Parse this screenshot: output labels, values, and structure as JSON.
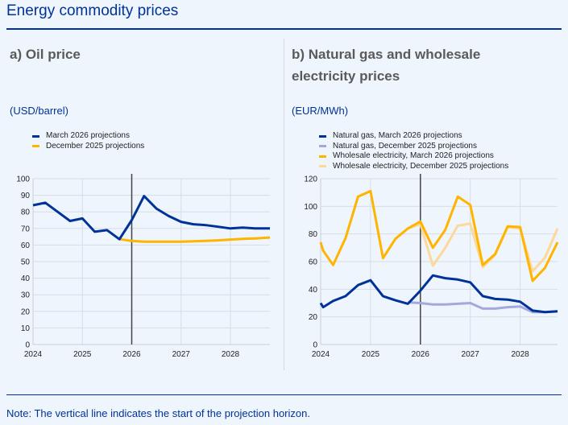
{
  "title": "Energy commodity prices",
  "note": "Note: The vertical line indicates the start of the projection horizon.",
  "colors": {
    "navy": "#003299",
    "yellow": "#ffb400",
    "light_blue": "#a4a9dc",
    "light_yellow": "#fdd89b",
    "grid": "#d6dde6",
    "axis_bg": "#eef5fc"
  },
  "chart_data": [
    {
      "type": "line",
      "title": "a) Oil price",
      "ylabel": "(USD/barrel)",
      "xlim": [
        2024,
        2028.8
      ],
      "ylim": [
        0,
        100
      ],
      "yticks": [
        0,
        10,
        20,
        30,
        40,
        50,
        60,
        70,
        80,
        90,
        100
      ],
      "xticks": [
        2024,
        2025,
        2026,
        2027,
        2028
      ],
      "grid": true,
      "legend": "top-left",
      "vline": 2026,
      "series": [
        {
          "name": "March 2026 projections",
          "color": "#003299",
          "x": [
            2024,
            2024.25,
            2024.5,
            2024.75,
            2025,
            2025.25,
            2025.5,
            2025.75,
            2026,
            2026.25,
            2026.5,
            2026.75,
            2027,
            2027.25,
            2027.5,
            2027.75,
            2028,
            2028.25,
            2028.5,
            2028.75,
            2028.8
          ],
          "y": [
            84,
            85.5,
            80,
            74.5,
            76,
            68,
            69,
            63.5,
            75,
            89.5,
            82,
            77.5,
            74,
            72.5,
            72,
            71,
            70,
            70.5,
            70,
            70,
            70
          ]
        },
        {
          "name": "December 2025 projections",
          "color": "#ffb400",
          "x": [
            2025.75,
            2026,
            2026.25,
            2026.5,
            2026.75,
            2027,
            2027.25,
            2027.5,
            2027.75,
            2028,
            2028.25,
            2028.5,
            2028.75,
            2028.8
          ],
          "y": [
            63.5,
            62.5,
            62,
            62,
            62,
            62,
            62.3,
            62.5,
            62.8,
            63.3,
            63.7,
            64,
            64.4,
            64.5
          ]
        }
      ]
    },
    {
      "type": "line",
      "title": "b) Natural gas and wholesale electricity prices",
      "ylabel": "(EUR/MWh)",
      "xlim": [
        2024,
        2028.75
      ],
      "ylim": [
        0,
        120
      ],
      "yticks": [
        0,
        20,
        40,
        60,
        80,
        100,
        120
      ],
      "xticks": [
        2024,
        2025,
        2026,
        2027,
        2028
      ],
      "grid": true,
      "legend": "top-left",
      "vline": 2026,
      "series": [
        {
          "name": "Natural gas, March 2026 projections",
          "color": "#003299",
          "x": [
            2024,
            2024.05,
            2024.25,
            2024.5,
            2024.75,
            2025,
            2025.25,
            2025.5,
            2025.75,
            2026,
            2026.25,
            2026.5,
            2026.75,
            2027,
            2027.25,
            2027.5,
            2027.75,
            2028,
            2028.25,
            2028.5,
            2028.75
          ],
          "y": [
            30,
            27,
            31.5,
            35,
            43,
            46.5,
            35,
            32,
            29.5,
            39,
            50,
            48,
            47,
            45,
            35,
            33,
            32.5,
            31,
            24.5,
            23.5,
            24
          ]
        },
        {
          "name": "Natural gas, December 2025 projections",
          "color": "#a4a9dc",
          "x": [
            2025.75,
            2026,
            2026.25,
            2026.5,
            2026.75,
            2027,
            2027.25,
            2027.5,
            2027.75,
            2028,
            2028.25,
            2028.5,
            2028.75
          ],
          "y": [
            30.5,
            30,
            29,
            29,
            29.5,
            30,
            26,
            26,
            27,
            27.5,
            23.5,
            23.5,
            24
          ]
        },
        {
          "name": "Wholesale electricity, March 2026 projections",
          "color": "#ffb400",
          "x": [
            2024,
            2024.05,
            2024.25,
            2024.5,
            2024.75,
            2025,
            2025.25,
            2025.5,
            2025.75,
            2026,
            2026.25,
            2026.5,
            2026.75,
            2027,
            2027.25,
            2027.5,
            2027.75,
            2028,
            2028.25,
            2028.5,
            2028.75
          ],
          "y": [
            74,
            68,
            57.5,
            77,
            107,
            111,
            62.5,
            76.5,
            84,
            89,
            70,
            83,
            107,
            101,
            57.5,
            65.5,
            85.5,
            85,
            46,
            55.5,
            74
          ]
        },
        {
          "name": "Wholesale electricity, December 2025 projections",
          "color": "#fdd89b",
          "x": [
            2025.75,
            2026,
            2026.25,
            2026.5,
            2026.75,
            2027,
            2027.25,
            2027.5,
            2027.75,
            2028,
            2028.25,
            2028.5,
            2028.75
          ],
          "y": [
            84,
            87,
            57,
            70,
            86,
            87.5,
            56,
            65,
            85,
            84,
            53,
            63,
            84
          ]
        }
      ]
    }
  ]
}
